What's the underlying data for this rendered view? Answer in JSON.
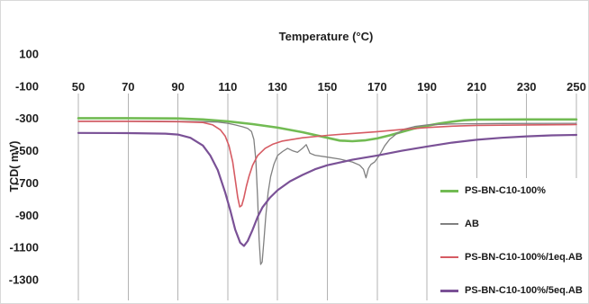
{
  "chart_data": {
    "type": "line",
    "xlabel": "Temperature (°C)",
    "ylabel": "TCD( mV)",
    "xlim": [
      50,
      250
    ],
    "ylim": [
      -1300,
      100
    ],
    "x_ticks": [
      50,
      70,
      90,
      110,
      130,
      150,
      170,
      190,
      210,
      230,
      250
    ],
    "y_ticks": [
      100,
      -100,
      -300,
      -500,
      -700,
      -900,
      -1100,
      -1300
    ],
    "x_axis_labels": "top",
    "grid": "vertical",
    "legend_position": "right",
    "series": [
      {
        "name": "PS-BN-C10-100%",
        "color": "#72bb53",
        "x": [
          50,
          70,
          90,
          100,
          110,
          120,
          130,
          140,
          150,
          155,
          160,
          165,
          170,
          175,
          180,
          185,
          190,
          195,
          200,
          205,
          210,
          230,
          250
        ],
        "y": [
          -298,
          -298,
          -300,
          -306,
          -318,
          -335,
          -357,
          -385,
          -420,
          -437,
          -441,
          -436,
          -424,
          -405,
          -383,
          -362,
          -345,
          -331,
          -320,
          -311,
          -307,
          -306,
          -306
        ]
      },
      {
        "name": "AB",
        "color": "#808080",
        "x": [
          50,
          70,
          90,
          100,
          106,
          110,
          113,
          116,
          118,
          119.5,
          120.5,
          121.3,
          122,
          122.6,
          123.2,
          123.8,
          124.5,
          125.3,
          126.2,
          127.2,
          128.5,
          130,
          132,
          134,
          136,
          138,
          140,
          141.5,
          143,
          145,
          150,
          155,
          160,
          163,
          164.5,
          165.5,
          166.5,
          167.5,
          169,
          171,
          173,
          175,
          178,
          181,
          185,
          190,
          200,
          220,
          250
        ],
        "y": [
          -316,
          -316,
          -318,
          -320,
          -322,
          -330,
          -340,
          -352,
          -362,
          -380,
          -430,
          -560,
          -800,
          -1050,
          -1205,
          -1190,
          -1060,
          -900,
          -760,
          -660,
          -585,
          -530,
          -505,
          -485,
          -500,
          -510,
          -485,
          -462,
          -515,
          -528,
          -540,
          -552,
          -570,
          -590,
          -615,
          -668,
          -610,
          -585,
          -570,
          -525,
          -470,
          -430,
          -392,
          -366,
          -350,
          -340,
          -334,
          -331,
          -330
        ]
      },
      {
        "name": "PS-BN-C10-100%/1eq.AB",
        "color": "#d65b63",
        "x": [
          50,
          70,
          90,
          100,
          104,
          107,
          109,
          110.5,
          112,
          113,
          114,
          114.8,
          115.6,
          116.5,
          117.5,
          118.5,
          120,
          122,
          125,
          128,
          132,
          140,
          150,
          160,
          170,
          180,
          190,
          200,
          210,
          230,
          250
        ],
        "y": [
          -318,
          -318,
          -320,
          -325,
          -340,
          -370,
          -410,
          -470,
          -570,
          -680,
          -790,
          -848,
          -840,
          -790,
          -720,
          -660,
          -590,
          -530,
          -485,
          -460,
          -440,
          -420,
          -405,
          -393,
          -382,
          -368,
          -356,
          -348,
          -343,
          -340,
          -338
        ]
      },
      {
        "name": "PS-BN-C10-100%/5eq.AB",
        "color": "#7a5196",
        "x": [
          50,
          70,
          85,
          90,
          95,
          100,
          103,
          106,
          109,
          111,
          113,
          115,
          116.5,
          118,
          120,
          122,
          124,
          127,
          130,
          135,
          140,
          145,
          150,
          160,
          170,
          180,
          190,
          200,
          210,
          220,
          230,
          240,
          250
        ],
        "y": [
          -390,
          -391,
          -394,
          -400,
          -420,
          -468,
          -530,
          -620,
          -760,
          -870,
          -990,
          -1070,
          -1090,
          -1060,
          -990,
          -910,
          -850,
          -790,
          -745,
          -690,
          -650,
          -615,
          -590,
          -556,
          -530,
          -500,
          -474,
          -450,
          -432,
          -420,
          -411,
          -405,
          -402
        ]
      }
    ]
  }
}
